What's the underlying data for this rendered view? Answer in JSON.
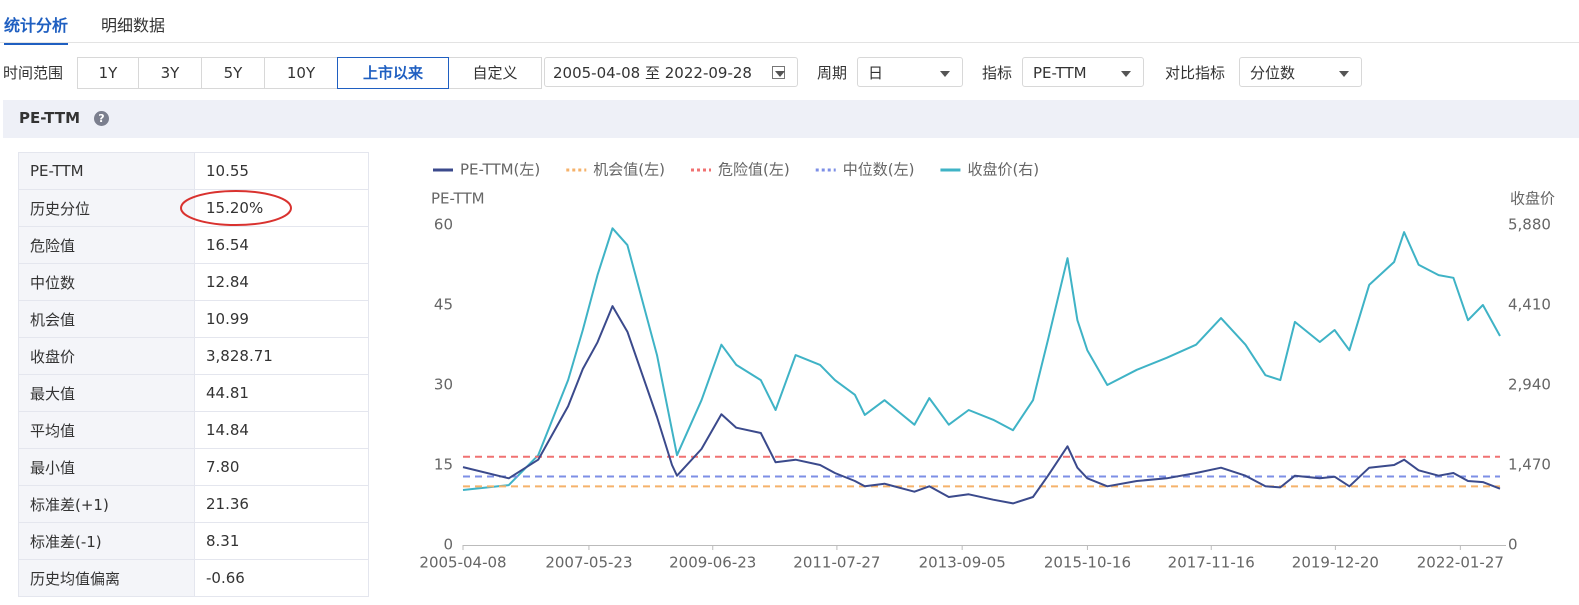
{
  "tabs": [
    "统计分析",
    "明细数据"
  ],
  "filters": {
    "range_label": "时间范围",
    "range_buttons": [
      "1Y",
      "3Y",
      "5Y",
      "10Y",
      "上市以来",
      "自定义"
    ],
    "range_active": 4,
    "date_start": "2005-04-08",
    "date_sep": "至",
    "date_end": "2022-09-28",
    "period_label": "周期",
    "period_value": "日",
    "indicator_label": "指标",
    "indicator_value": "PE-TTM",
    "compare_label": "对比指标",
    "compare_value": "分位数"
  },
  "panel": {
    "title": "PE-TTM"
  },
  "table": {
    "rows": [
      [
        "PE-TTM",
        "10.55"
      ],
      [
        "历史分位",
        "15.20%"
      ],
      [
        "危险值",
        "16.54"
      ],
      [
        "中位数",
        "12.84"
      ],
      [
        "机会值",
        "10.99"
      ],
      [
        "收盘价",
        "3,828.71"
      ],
      [
        "最大值",
        "44.81"
      ],
      [
        "平均值",
        "14.84"
      ],
      [
        "最小值",
        "7.80"
      ],
      [
        "标准差(+1)",
        "21.36"
      ],
      [
        "标准差(-1)",
        "8.31"
      ],
      [
        "历史均值偏离",
        "-0.66"
      ]
    ]
  },
  "chart_data": {
    "type": "line",
    "y_label": "PE-TTM",
    "y2_label": "收盘价",
    "x": [
      "2005-04-08",
      "2006-01-15",
      "2006-07-15",
      "2007-01-15",
      "2007-04-15",
      "2007-07-15",
      "2007-10-15",
      "2008-01-15",
      "2008-04-15",
      "2008-07-15",
      "2008-10-15",
      "2008-11-15",
      "2009-04-15",
      "2009-08-15",
      "2009-11-15",
      "2010-04-15",
      "2010-07-15",
      "2010-11-15",
      "2011-04-15",
      "2011-07-15",
      "2011-11-15",
      "2012-01-15",
      "2012-05-15",
      "2012-11-15",
      "2013-02-15",
      "2013-06-15",
      "2013-10-15",
      "2014-03-15",
      "2014-07-15",
      "2014-11-15",
      "2015-02-15",
      "2015-06-15",
      "2015-08-15",
      "2015-10-15",
      "2016-02-15",
      "2016-08-15",
      "2017-02-15",
      "2017-08-15",
      "2018-01-15",
      "2018-06-15",
      "2018-10-15",
      "2019-01-15",
      "2019-04-15",
      "2019-09-15",
      "2019-12-15",
      "2020-03-15",
      "2020-07-15",
      "2020-12-15",
      "2021-02-15",
      "2021-05-15",
      "2021-09-15",
      "2021-12-15",
      "2022-03-15",
      "2022-06-15",
      "2022-09-28"
    ],
    "series": [
      {
        "name": "PE-TTM(左)",
        "color": "#3b4a8c",
        "values": [
          14.6,
          12.5,
          16,
          26,
          33,
          38,
          44.8,
          40,
          32,
          24,
          15,
          13,
          18,
          24.5,
          22,
          21,
          15.5,
          16,
          15,
          13.5,
          12,
          11,
          11.5,
          10,
          11,
          9,
          9.5,
          8.5,
          7.8,
          9,
          13,
          18.5,
          14.5,
          12.5,
          11,
          12,
          12.5,
          13.5,
          14.5,
          13,
          11,
          10.8,
          13,
          12.5,
          12.8,
          11,
          14.5,
          15,
          16,
          14,
          13,
          13.5,
          12,
          11.8,
          10.55
        ]
      },
      {
        "name": "机会值(左)",
        "color": "#f5b26b",
        "dashed": true,
        "value": 10.99
      },
      {
        "name": "危险值(左)",
        "color": "#f07272",
        "dashed": true,
        "value": 16.54
      },
      {
        "name": "中位数(左)",
        "color": "#7d8fe6",
        "dashed": true,
        "value": 12.84
      },
      {
        "name": "收盘价(右)",
        "color": "#3fb3c6",
        "axis": "y2",
        "values": [
          1010,
          1100,
          1650,
          3030,
          3950,
          4960,
          5820,
          5510,
          4500,
          3490,
          2110,
          1650,
          2660,
          3680,
          3310,
          3030,
          2480,
          3490,
          3310,
          3030,
          2760,
          2390,
          2660,
          2210,
          2700,
          2210,
          2480,
          2300,
          2110,
          2660,
          3770,
          5270,
          4130,
          3580,
          2940,
          3220,
          3440,
          3680,
          4170,
          3680,
          3120,
          3030,
          4100,
          3730,
          3950,
          3580,
          4780,
          5200,
          5750,
          5150,
          4960,
          4910,
          4130,
          4410,
          3840
        ]
      }
    ],
    "xlim": [
      "2005-04-08",
      "2022-09-28"
    ],
    "xticks": [
      "2005-04-08",
      "2007-05-23",
      "2009-06-23",
      "2011-07-27",
      "2013-09-05",
      "2015-10-16",
      "2017-11-16",
      "2019-12-20",
      "2022-01-27"
    ],
    "ylim": [
      0,
      60
    ],
    "yticks": [
      0,
      15,
      30,
      45,
      60
    ],
    "y2lim": [
      0,
      5880
    ],
    "y2ticks": [
      0,
      {
        "value": 1470,
        "label": "1,470"
      },
      {
        "value": 2940,
        "label": "2,940"
      },
      {
        "value": 4410,
        "label": "4,410"
      },
      {
        "value": 5880,
        "label": "5,880"
      }
    ],
    "grid": false
  }
}
